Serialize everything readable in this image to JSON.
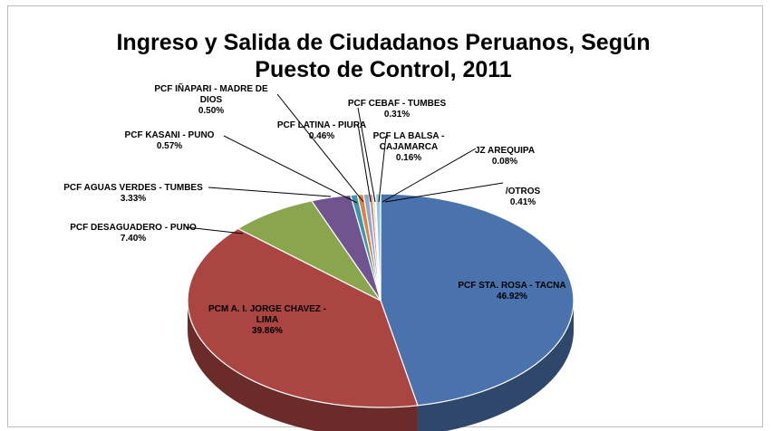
{
  "chart_data": {
    "type": "pie",
    "title_lines": [
      "Ingreso y Salida de Ciudadanos Peruanos, Según",
      "Puesto de Control, 2011"
    ],
    "slices": [
      {
        "label_lines": [
          "PCF STA. ROSA - TACNA"
        ],
        "value_text": "46.92%",
        "value": 46.92,
        "color": "#4a72ac"
      },
      {
        "label_lines": [
          "PCM A. I. JORGE CHAVEZ -",
          "LIMA"
        ],
        "value_text": "39.86%",
        "value": 39.86,
        "color": "#ab4542"
      },
      {
        "label_lines": [
          "PCF DESAGUADERO - PUNO"
        ],
        "value_text": "7.40%",
        "value": 7.4,
        "color": "#89a54e"
      },
      {
        "label_lines": [
          "PCF AGUAS VERDES - TUMBES"
        ],
        "value_text": "3.33%",
        "value": 3.33,
        "color": "#6f548f"
      },
      {
        "label_lines": [
          "PCF KASANI - PUNO"
        ],
        "value_text": "0.57%",
        "value": 0.57,
        "color": "#3d96ae"
      },
      {
        "label_lines": [
          "PCF IÑAPARI - MADRE DE",
          "DIOS"
        ],
        "value_text": "0.50%",
        "value": 0.5,
        "color": "#db843d"
      },
      {
        "label_lines": [
          "PCF LATINA - PIURA"
        ],
        "value_text": "0.46%",
        "value": 0.46,
        "color": "#8ea7cf"
      },
      {
        "label_lines": [
          "PCF CEBAF - TUMBES"
        ],
        "value_text": "0.31%",
        "value": 0.31,
        "color": "#cf8f8d"
      },
      {
        "label_lines": [
          "PCF LA BALSA -",
          "CAJAMARCA"
        ],
        "value_text": "0.16%",
        "value": 0.16,
        "color": "#b7cc8f"
      },
      {
        "label_lines": [
          "JZ AREQUIPA"
        ],
        "value_text": "0.08%",
        "value": 0.08,
        "color": "#a797c0"
      },
      {
        "label_lines": [
          "/OTROS"
        ],
        "value_text": "0.41%",
        "value": 0.41,
        "color": "#93c7d9"
      }
    ]
  }
}
